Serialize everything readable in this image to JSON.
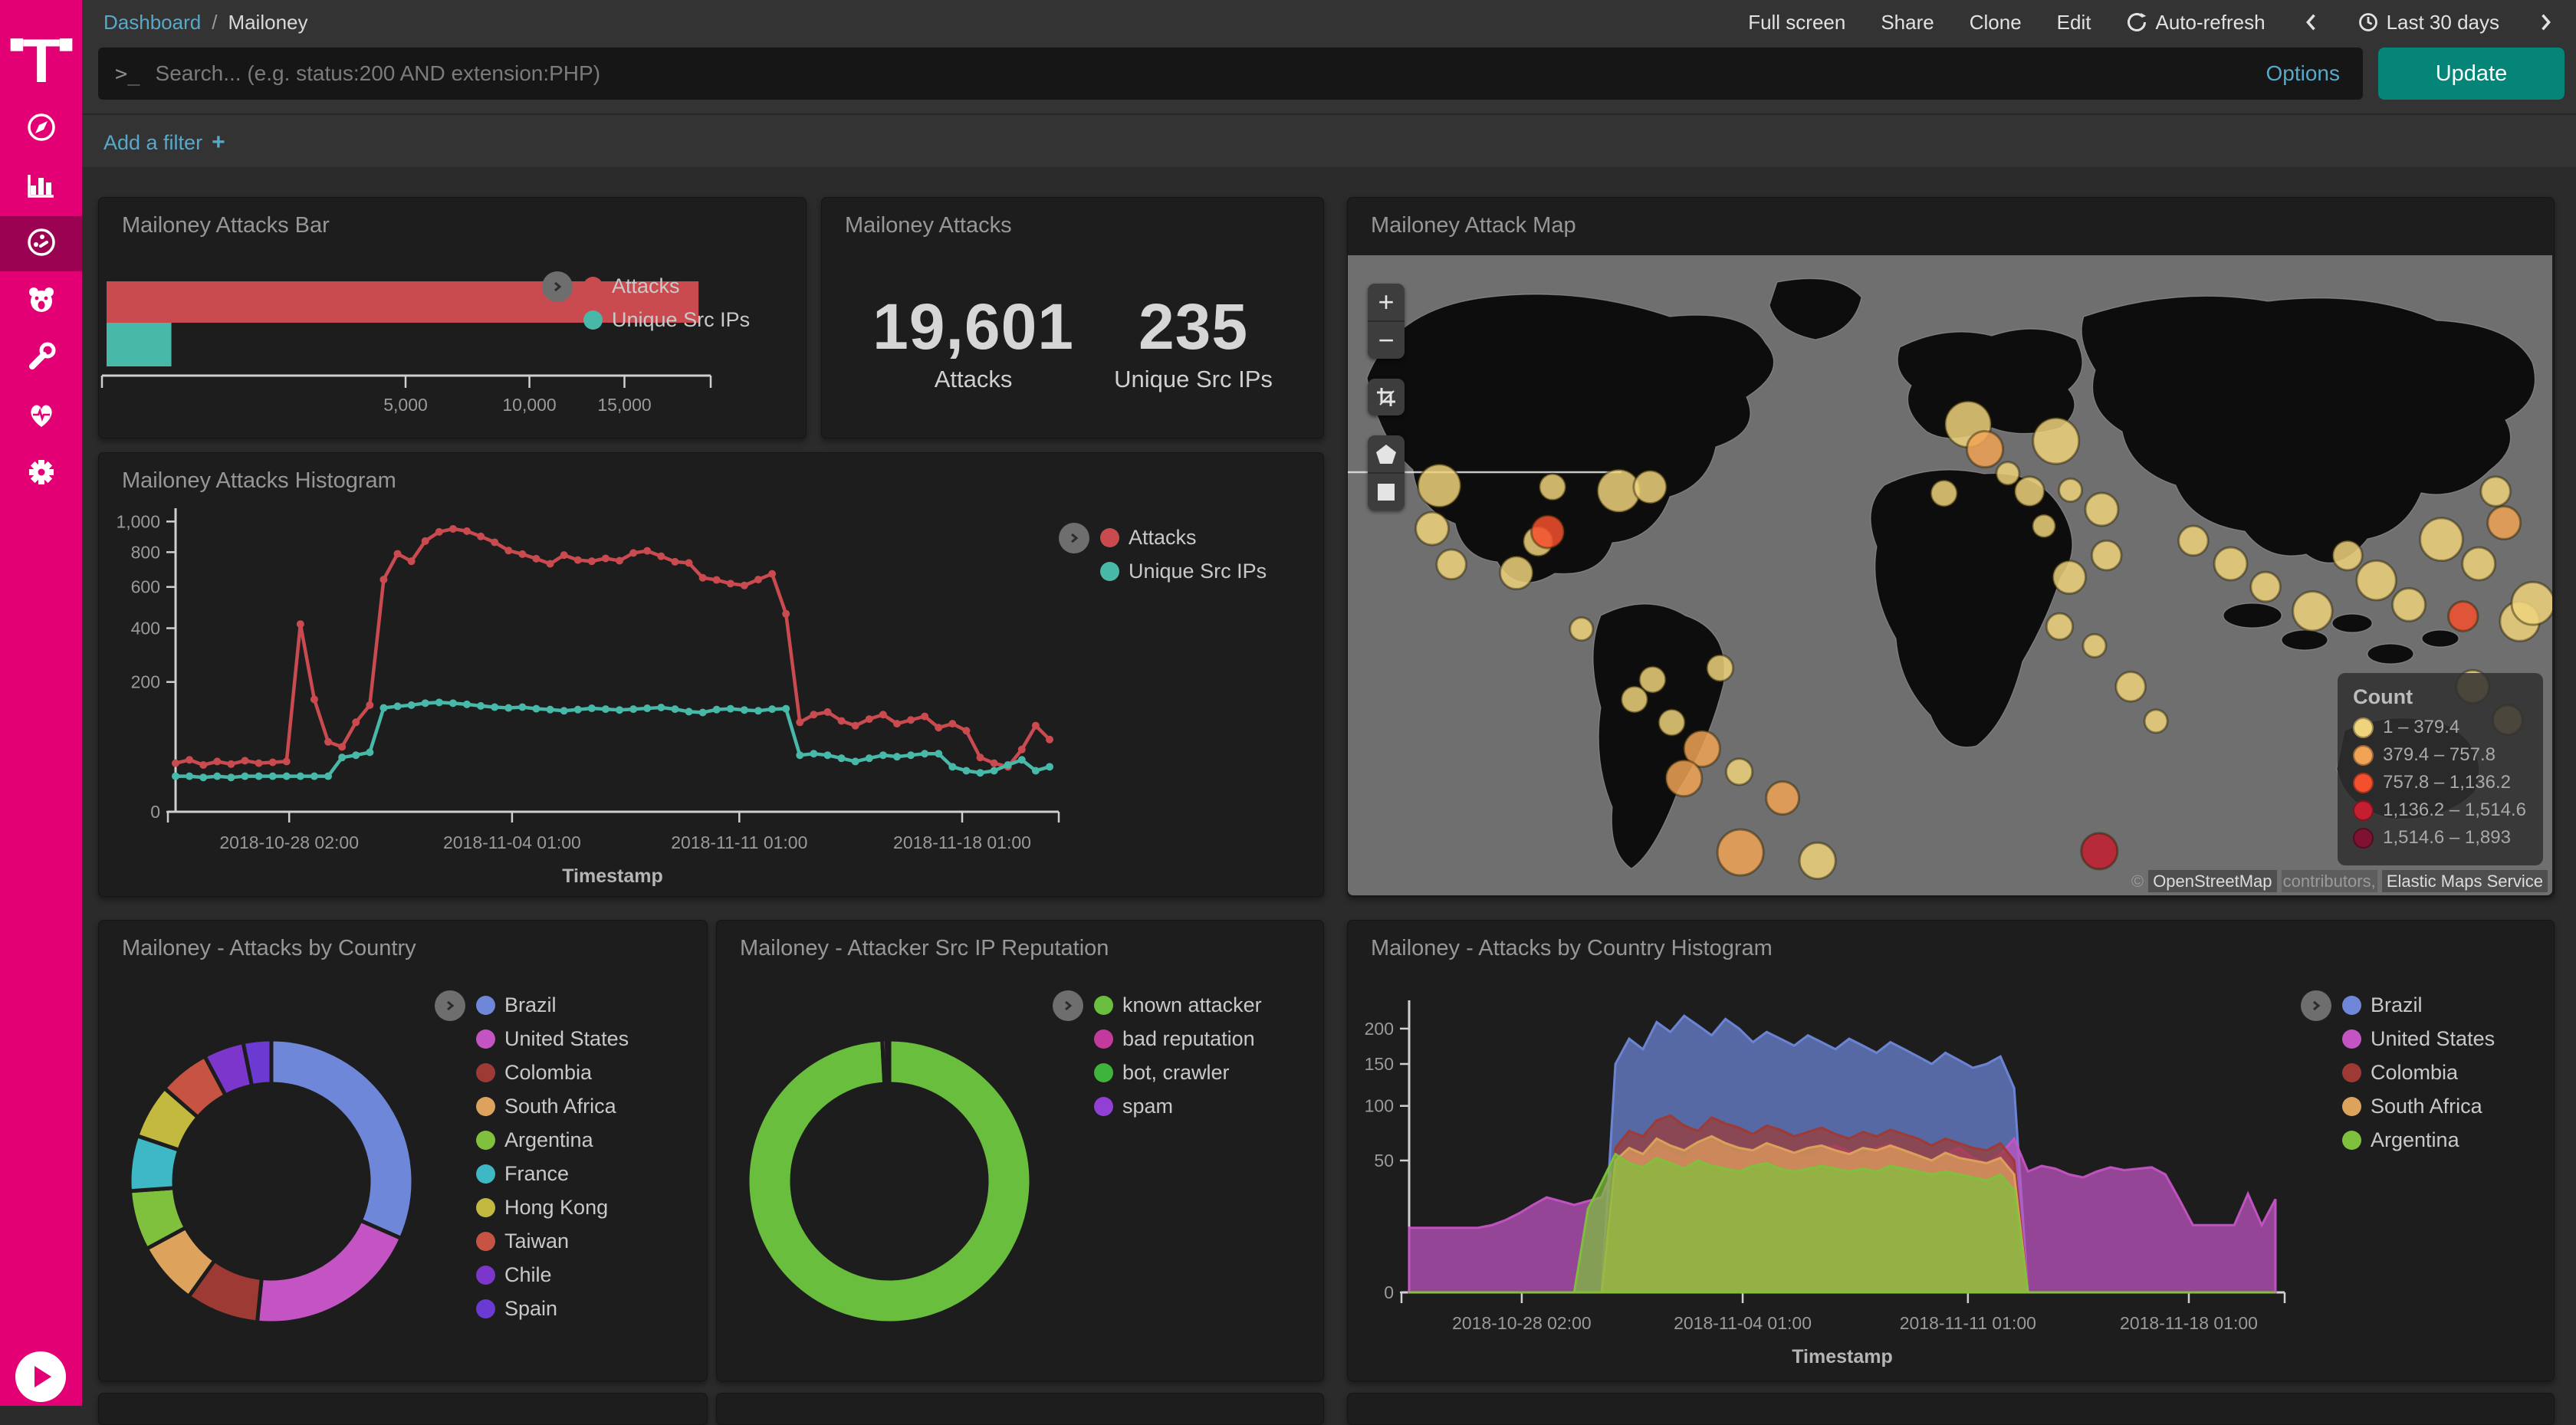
{
  "topbar": {
    "breadcrumb": {
      "root": "Dashboard",
      "separator": "/",
      "current": "Mailoney"
    },
    "actions": [
      "Full screen",
      "Share",
      "Clone",
      "Edit"
    ],
    "auto_refresh": "Auto-refresh",
    "time_range": "Last 30 days"
  },
  "query_bar": {
    "prompt": ">_",
    "placeholder": "Search... (e.g. status:200 AND extension:PHP)",
    "options_label": "Options",
    "update_label": "Update"
  },
  "filter_bar": {
    "add_filter_label": "Add a filter",
    "plus": "+"
  },
  "panels": {
    "attacks_bar": {
      "title": "Mailoney Attacks Bar",
      "chart_data": {
        "type": "bar",
        "orientation": "horizontal",
        "scale": "sqrt",
        "x_max": 20000,
        "x_ticks": [
          5000,
          10000,
          15000
        ],
        "x_tick_labels": [
          "5,000",
          "10,000",
          "15,000"
        ],
        "series": [
          {
            "name": "Attacks",
            "value": 19601,
            "color": "#c94b50"
          },
          {
            "name": "Unique Src IPs",
            "value": 235,
            "color": "#48b8a8"
          }
        ]
      }
    },
    "attacks_metric": {
      "title": "Mailoney Attacks",
      "metrics": [
        {
          "value": "19,601",
          "label": "Attacks"
        },
        {
          "value": "235",
          "label": "Unique Src IPs"
        }
      ]
    },
    "attack_map": {
      "title": "Mailoney Attack Map",
      "controls": [
        "zoom-in",
        "zoom-out",
        "crop",
        "draw-polygon",
        "draw-rectangle"
      ],
      "legend": {
        "title": "Count",
        "items": [
          {
            "label": "1 – 379.4",
            "color": "#eed47c"
          },
          {
            "label": "379.4 – 757.8",
            "color": "#f0a355"
          },
          {
            "label": "757.8 – 1,136.2",
            "color": "#f4502e"
          },
          {
            "label": "1,136.2 – 1,514.6",
            "color": "#c31f31"
          },
          {
            "label": "1,514.6 – 1,893",
            "color": "#801231"
          }
        ]
      },
      "attribution": {
        "prefix": "©",
        "osm": "OpenStreetMap",
        "middle": "contributors,",
        "ems": "Elastic Maps Service"
      },
      "chart_data": {
        "type": "map-circles",
        "tier_colors": [
          "#eed47c",
          "#f0a355",
          "#f4502e",
          "#c31f31",
          "#801231"
        ],
        "circles": [
          [
            7.6,
            36,
            13,
            0
          ],
          [
            7,
            42.7,
            10,
            0
          ],
          [
            8.6,
            48.3,
            9,
            0
          ],
          [
            14,
            49.6,
            10,
            0
          ],
          [
            15.8,
            44.7,
            9,
            0
          ],
          [
            16.6,
            43.2,
            10,
            2
          ],
          [
            17,
            36.2,
            8,
            0
          ],
          [
            22.5,
            36.8,
            13,
            0
          ],
          [
            25.1,
            36.2,
            10,
            0
          ],
          [
            19.4,
            58.4,
            7,
            0
          ],
          [
            25.3,
            66.3,
            8,
            0
          ],
          [
            23.8,
            69.4,
            8,
            0
          ],
          [
            30.9,
            64.5,
            8,
            0
          ],
          [
            26.9,
            73,
            8,
            0
          ],
          [
            29.4,
            77.1,
            11,
            1
          ],
          [
            27.9,
            81.7,
            11,
            1
          ],
          [
            32.5,
            80.7,
            8,
            0
          ],
          [
            36.1,
            84.8,
            10,
            1
          ],
          [
            32.6,
            93.3,
            14,
            1
          ],
          [
            39,
            94.6,
            11,
            0
          ],
          [
            49.5,
            37.2,
            8,
            0
          ],
          [
            51.5,
            26.4,
            14,
            0
          ],
          [
            52.9,
            30.3,
            11,
            1
          ],
          [
            58.8,
            29,
            14,
            0
          ],
          [
            54.8,
            34.1,
            7,
            0
          ],
          [
            56.6,
            36.9,
            9,
            0
          ],
          [
            60,
            36.7,
            7,
            0
          ],
          [
            62.6,
            39.7,
            10,
            0
          ],
          [
            57.8,
            42.3,
            7,
            0
          ],
          [
            63,
            46.9,
            9,
            0
          ],
          [
            59.9,
            50.3,
            10,
            0
          ],
          [
            59.1,
            58,
            8,
            0
          ],
          [
            62,
            61,
            7,
            0
          ],
          [
            65,
            67.4,
            9,
            0
          ],
          [
            67.1,
            72.8,
            7,
            0
          ],
          [
            62.4,
            93.1,
            11,
            3
          ],
          [
            70.2,
            44.6,
            9,
            0
          ],
          [
            73.3,
            48.2,
            10,
            0
          ],
          [
            76.2,
            51.8,
            9,
            0
          ],
          [
            80.1,
            55.6,
            12,
            0
          ],
          [
            83,
            46.9,
            9,
            0
          ],
          [
            85.4,
            50.8,
            12,
            0
          ],
          [
            88.1,
            54.6,
            10,
            0
          ],
          [
            90.8,
            44.4,
            13,
            0
          ],
          [
            93.9,
            48.2,
            10,
            0
          ],
          [
            96,
            41.8,
            10,
            1
          ],
          [
            92.6,
            56.4,
            9,
            2
          ],
          [
            97.3,
            57.2,
            12,
            0
          ],
          [
            93.4,
            67.4,
            10,
            0
          ],
          [
            96.3,
            72.6,
            9,
            0
          ],
          [
            95.3,
            36.9,
            9,
            0
          ],
          [
            98.4,
            54.4,
            13,
            0
          ]
        ]
      }
    },
    "attacks_histogram": {
      "title": "Mailoney Attacks Histogram",
      "chart_data": {
        "type": "line",
        "scale": "sqrt",
        "y_max": 1050,
        "y_ticks": [
          0,
          200,
          400,
          600,
          800,
          1000
        ],
        "y_tick_labels": [
          "0",
          "200",
          "400",
          "600",
          "800",
          "1,000"
        ],
        "x_axis_label": "Timestamp",
        "x_ticks": [
          {
            "label": "2018-10-28 02:00",
            "pos": 0.13
          },
          {
            "label": "2018-11-04 01:00",
            "pos": 0.385
          },
          {
            "label": "2018-11-11 01:00",
            "pos": 0.645
          },
          {
            "label": "2018-11-18 01:00",
            "pos": 0.9
          }
        ],
        "series": [
          {
            "name": "Attacks",
            "color": "#c94b50",
            "values": [
              28,
              32,
              26,
              30,
              27,
              31,
              28,
              29,
              30,
              418,
              150,
              58,
              50,
              95,
              135,
              640,
              790,
              745,
              870,
              930,
              950,
              935,
              900,
              862,
              810,
              788,
              760,
              730,
              782,
              752,
              745,
              762,
              748,
              795,
              808,
              775,
              742,
              735,
              650,
              638,
              618,
              608,
              640,
              672,
              465,
              95,
              112,
              118,
              98,
              88,
              102,
              112,
              92,
              100,
              108,
              84,
              92,
              78,
              35,
              28,
              24,
              46,
              88,
              62
            ]
          },
          {
            "name": "Unique Src IPs",
            "color": "#48b8a8",
            "values": [
              15,
              15,
              14,
              15,
              14,
              15,
              15,
              15,
              15,
              15,
              15,
              15,
              35,
              38,
              42,
              128,
              132,
              135,
              140,
              142,
              140,
              137,
              133,
              130,
              128,
              130,
              126,
              124,
              121,
              124,
              127,
              125,
              123,
              125,
              127,
              129,
              125,
              119,
              117,
              124,
              126,
              123,
              121,
              125,
              126,
              38,
              40,
              38,
              34,
              30,
              34,
              38,
              36,
              38,
              40,
              40,
              24,
              20,
              18,
              20,
              26,
              32,
              20,
              24
            ]
          }
        ]
      }
    },
    "by_country_pie": {
      "title": "Mailoney - Attacks by Country",
      "chart_data": {
        "type": "pie",
        "donut": true,
        "slices": [
          {
            "label": "Brazil",
            "value": 31.6,
            "color": "#6e87d8"
          },
          {
            "label": "United States",
            "value": 20.0,
            "color": "#c454c4"
          },
          {
            "label": "Colombia",
            "value": 8.3,
            "color": "#9e3a34"
          },
          {
            "label": "South Africa",
            "value": 7.2,
            "color": "#dda25c"
          },
          {
            "label": "Argentina",
            "value": 6.8,
            "color": "#7fc13d"
          },
          {
            "label": "France",
            "value": 6.3,
            "color": "#3eb8c4"
          },
          {
            "label": "Hong Kong",
            "value": 6.2,
            "color": "#c2b93e"
          },
          {
            "label": "Taiwan",
            "value": 5.8,
            "color": "#c75343"
          },
          {
            "label": "Chile",
            "value": 4.6,
            "color": "#7c36cb"
          },
          {
            "label": "Spain",
            "value": 3.2,
            "color": "#6a3ad2"
          }
        ]
      }
    },
    "reputation_pie": {
      "title": "Mailoney - Attacker Src IP Reputation",
      "chart_data": {
        "type": "pie",
        "donut": true,
        "slices": [
          {
            "label": "known attacker",
            "value": 99.2,
            "color": "#6abe3d"
          },
          {
            "label": "bad reputation",
            "value": 0.5,
            "color": "#c23a9e"
          },
          {
            "label": "bot, crawler",
            "value": 0.2,
            "color": "#3eb43c"
          },
          {
            "label": "spam",
            "value": 0.1,
            "color": "#9240d3"
          }
        ]
      }
    },
    "by_country_histogram": {
      "title": "Mailoney - Attacks by Country Histogram",
      "chart_data": {
        "type": "area",
        "scale": "sqrt",
        "y_max": 235,
        "y_ticks": [
          0,
          50,
          100,
          150,
          200
        ],
        "y_tick_labels": [
          "0",
          "50",
          "100",
          "150",
          "200"
        ],
        "x_axis_label": "Timestamp",
        "x_ticks": [
          {
            "label": "2018-10-28 02:00",
            "pos": 0.13
          },
          {
            "label": "2018-11-04 01:00",
            "pos": 0.385
          },
          {
            "label": "2018-11-11 01:00",
            "pos": 0.645
          },
          {
            "label": "2018-11-18 01:00",
            "pos": 0.9
          }
        ],
        "series": [
          {
            "name": "Brazil",
            "color": "#6e87d8",
            "values": [
              0,
              0,
              0,
              0,
              0,
              0,
              0,
              0,
              0,
              0,
              0,
              0,
              0,
              0,
              0,
              150,
              185,
              170,
              210,
              195,
              220,
              205,
              190,
              215,
              200,
              180,
              195,
              185,
              175,
              190,
              180,
              170,
              185,
              175,
              165,
              180,
              170,
              160,
              150,
              165,
              155,
              145,
              150,
              160,
              120,
              0,
              0,
              0,
              0,
              0,
              0,
              0,
              0,
              0,
              0,
              0,
              0,
              0,
              0,
              0,
              0,
              0,
              0,
              0
            ]
          },
          {
            "name": "United States",
            "color": "#c454c4",
            "values": [
              12,
              12,
              12,
              12,
              12,
              12,
              13,
              15,
              18,
              22,
              26,
              24,
              22,
              24,
              26,
              48,
              55,
              52,
              60,
              56,
              50,
              62,
              66,
              60,
              55,
              58,
              64,
              60,
              55,
              52,
              58,
              62,
              57,
              53,
              60,
              63,
              58,
              54,
              50,
              55,
              60,
              52,
              48,
              55,
              68,
              42,
              46,
              44,
              40,
              38,
              42,
              45,
              43,
              44,
              45,
              40,
              25,
              13,
              13,
              13,
              13,
              28,
              13,
              25
            ]
          },
          {
            "name": "Colombia",
            "color": "#9e3a34",
            "values": [
              0,
              0,
              0,
              0,
              0,
              0,
              0,
              0,
              0,
              0,
              0,
              0,
              0,
              0,
              0,
              60,
              75,
              70,
              85,
              90,
              80,
              75,
              88,
              82,
              78,
              72,
              80,
              76,
              70,
              74,
              78,
              72,
              68,
              74,
              70,
              76,
              72,
              68,
              62,
              68,
              64,
              60,
              58,
              64,
              50,
              0,
              0,
              0,
              0,
              0,
              0,
              0,
              0,
              0,
              0,
              0,
              0,
              0,
              0,
              0,
              0,
              0,
              0,
              0
            ]
          },
          {
            "name": "South Africa",
            "color": "#dda25c",
            "values": [
              0,
              0,
              0,
              0,
              0,
              0,
              0,
              0,
              0,
              0,
              0,
              0,
              0,
              0,
              0,
              50,
              60,
              55,
              68,
              62,
              58,
              65,
              70,
              64,
              60,
              58,
              64,
              60,
              56,
              60,
              62,
              58,
              55,
              60,
              58,
              62,
              58,
              54,
              50,
              56,
              52,
              50,
              48,
              52,
              40,
              0,
              0,
              0,
              0,
              0,
              0,
              0,
              0,
              0,
              0,
              0,
              0,
              0,
              0,
              0,
              0,
              0,
              0,
              0
            ]
          },
          {
            "name": "Argentina",
            "color": "#7fc13d",
            "values": [
              0,
              0,
              0,
              0,
              0,
              0,
              0,
              0,
              0,
              0,
              0,
              0,
              0,
              20,
              35,
              55,
              48,
              45,
              52,
              48,
              44,
              50,
              46,
              44,
              42,
              46,
              48,
              44,
              42,
              44,
              46,
              44,
              42,
              44,
              42,
              46,
              44,
              42,
              40,
              42,
              40,
              38,
              36,
              40,
              30,
              0,
              0,
              0,
              0,
              0,
              0,
              0,
              0,
              0,
              0,
              0,
              0,
              0,
              0,
              0,
              0,
              0,
              0,
              0
            ]
          }
        ]
      }
    }
  }
}
